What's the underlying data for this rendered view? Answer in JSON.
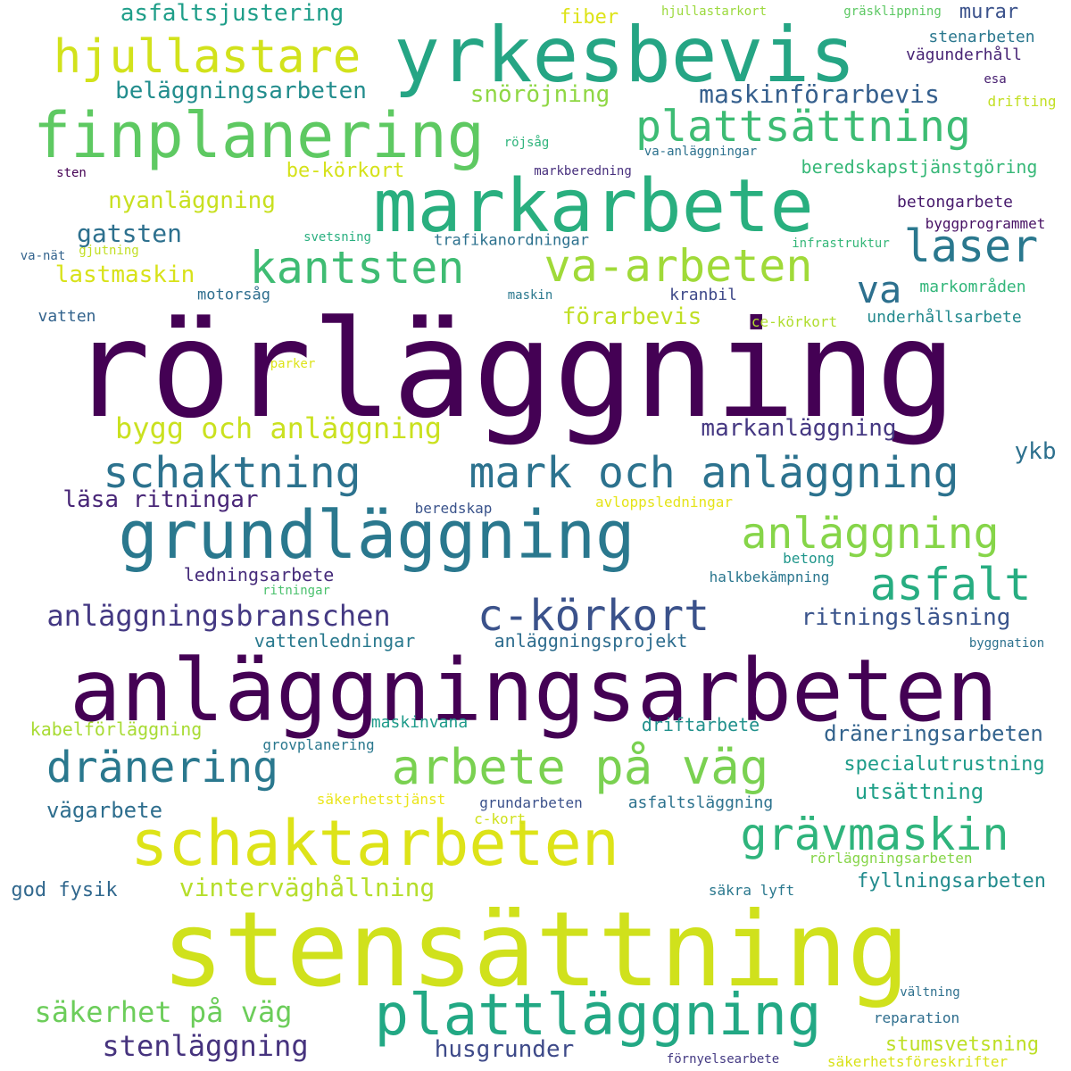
{
  "colors": {
    "background": "#ffffff",
    "palette": "viridis"
  },
  "words": [
    {
      "text": "rörläggning",
      "color": "#440154"
    },
    {
      "text": "stensättning",
      "color": "#d0e11c"
    },
    {
      "text": "anläggningsarbeten",
      "color": "#440154"
    },
    {
      "text": "yrkesbevis",
      "color": "#25a584"
    },
    {
      "text": "markarbete",
      "color": "#29af7f"
    },
    {
      "text": "grundläggning",
      "color": "#2a788e"
    },
    {
      "text": "finplanering",
      "color": "#5ec962"
    },
    {
      "text": "schaktarbeten",
      "color": "#dde318"
    },
    {
      "text": "plattläggning",
      "color": "#22a884"
    },
    {
      "text": "schaktning",
      "color": "#2c728e"
    },
    {
      "text": "mark och anläggning",
      "color": "#2c728e"
    },
    {
      "text": "arbete på väg",
      "color": "#7ad151"
    },
    {
      "text": "hjullastare",
      "color": "#d2e21b"
    },
    {
      "text": "plattsättning",
      "color": "#3dbc74"
    },
    {
      "text": "va-arbeten",
      "color": "#a0da39"
    },
    {
      "text": "kantsten",
      "color": "#3fbc73"
    },
    {
      "text": "grävmaskin",
      "color": "#2fb47c"
    },
    {
      "text": "c-körkort",
      "color": "#3b528b"
    },
    {
      "text": "dränering",
      "color": "#2a788e"
    },
    {
      "text": "anläggning",
      "color": "#86d549"
    },
    {
      "text": "asfalt",
      "color": "#27ad81"
    },
    {
      "text": "laser",
      "color": "#2a788e"
    },
    {
      "text": "va",
      "color": "#2d708e"
    },
    {
      "text": "anläggningsbranschen",
      "color": "#443983"
    },
    {
      "text": "bygg och anläggning",
      "color": "#cae11f"
    },
    {
      "text": "säkerhet på väg",
      "color": "#6ccd5a"
    },
    {
      "text": "stenläggning",
      "color": "#46337e"
    },
    {
      "text": "vinterväghållning",
      "color": "#b5de2b"
    },
    {
      "text": "maskinförarbevis",
      "color": "#355f8d"
    },
    {
      "text": "beläggningsarbeten",
      "color": "#228d8d"
    },
    {
      "text": "asfaltsjustering",
      "color": "#1f9e89"
    },
    {
      "text": "snöröjning",
      "color": "#8fd744"
    },
    {
      "text": "nyanläggning",
      "color": "#c8e020"
    },
    {
      "text": "gatsten",
      "color": "#2d708e"
    },
    {
      "text": "lastmaskin",
      "color": "#d8e219"
    },
    {
      "text": "förarbevis",
      "color": "#c0df25"
    },
    {
      "text": "markanläggning",
      "color": "#453882"
    },
    {
      "text": "ritningsläsning",
      "color": "#3a548c"
    },
    {
      "text": "ykb",
      "color": "#2d708e"
    },
    {
      "text": "läsa ritningar",
      "color": "#482677"
    },
    {
      "text": "husgrunder",
      "color": "#3e4a89"
    },
    {
      "text": "dräneringsarbeten",
      "color": "#33638d"
    },
    {
      "text": "utsättning",
      "color": "#1fa088"
    },
    {
      "text": "specialutrustning",
      "color": "#1e9c89"
    },
    {
      "text": "vägarbete",
      "color": "#2e6e8e"
    },
    {
      "text": "fyllningsarbeten",
      "color": "#228b8d"
    },
    {
      "text": "god fysik",
      "color": "#31688e"
    },
    {
      "text": "stumsvetsning",
      "color": "#bddf26"
    },
    {
      "text": "vattenledningar",
      "color": "#29798e"
    },
    {
      "text": "anläggningsprojekt",
      "color": "#2e6d8e"
    },
    {
      "text": "ledningsarbete",
      "color": "#472d7b"
    },
    {
      "text": "kabelförläggning",
      "color": "#a8db34"
    },
    {
      "text": "driftarbete",
      "color": "#21918c"
    },
    {
      "text": "beredskapstjänstgöring",
      "color": "#37b878"
    },
    {
      "text": "be-körkort",
      "color": "#d5e21a"
    },
    {
      "text": "fiber",
      "color": "#dde318"
    },
    {
      "text": "murar",
      "color": "#3b528b"
    },
    {
      "text": "stenarbeten",
      "color": "#2a778e"
    },
    {
      "text": "vägunderhåll",
      "color": "#482475"
    },
    {
      "text": "betongarbete",
      "color": "#481b6d"
    },
    {
      "text": "byggprogrammet",
      "color": "#471164"
    },
    {
      "text": "trafikanordningar",
      "color": "#2c718e"
    },
    {
      "text": "motorsåg",
      "color": "#2e6e8e"
    },
    {
      "text": "vatten",
      "color": "#33638d"
    },
    {
      "text": "kranbil",
      "color": "#3e4989"
    },
    {
      "text": "markområden",
      "color": "#32b67a"
    },
    {
      "text": "underhållsarbete",
      "color": "#23898e"
    },
    {
      "text": "ce-körkort",
      "color": "#b0dd2f"
    },
    {
      "text": "betong",
      "color": "#1f968b"
    },
    {
      "text": "halkbekämpning",
      "color": "#2a768e"
    },
    {
      "text": "avloppsledningar",
      "color": "#e5e419"
    },
    {
      "text": "beredskap",
      "color": "#3a538b"
    },
    {
      "text": "maskinvana",
      "color": "#1e9b8a"
    },
    {
      "text": "grovplanering",
      "color": "#2a788e"
    },
    {
      "text": "säkerhetstjänst",
      "color": "#eae51a"
    },
    {
      "text": "grundarbeten",
      "color": "#3b518b"
    },
    {
      "text": "asfaltsläggning",
      "color": "#2c728e"
    },
    {
      "text": "c-kort",
      "color": "#cfe11c"
    },
    {
      "text": "rörläggningsarbeten",
      "color": "#86d549"
    },
    {
      "text": "säkra lyft",
      "color": "#2a788e"
    },
    {
      "text": "reparation",
      "color": "#2e6e8e"
    },
    {
      "text": "vältning",
      "color": "#2d708e"
    },
    {
      "text": "förnyelsearbete",
      "color": "#443a83"
    },
    {
      "text": "säkerhetsföreskrifter",
      "color": "#d8e219"
    },
    {
      "text": "byggnation",
      "color": "#2c718e"
    },
    {
      "text": "hjullastarkort",
      "color": "#9bd93c"
    },
    {
      "text": "gräsklippning",
      "color": "#5cc863"
    },
    {
      "text": "esa",
      "color": "#482071"
    },
    {
      "text": "drifting",
      "color": "#c2df23"
    },
    {
      "text": "röjsåg",
      "color": "#2fb47c"
    },
    {
      "text": "va-anläggningar",
      "color": "#2c718e"
    },
    {
      "text": "markberedning",
      "color": "#472f7d"
    },
    {
      "text": "sten",
      "color": "#440154"
    },
    {
      "text": "svetsning",
      "color": "#29af7f"
    },
    {
      "text": "infrastruktur",
      "color": "#35b779"
    },
    {
      "text": "va-nät",
      "color": "#33638d"
    },
    {
      "text": "gjutning",
      "color": "#c2df23"
    },
    {
      "text": "maskin",
      "color": "#2a788e"
    },
    {
      "text": "parker",
      "color": "#dde318"
    },
    {
      "text": "ritningar",
      "color": "#4ac16d"
    }
  ]
}
